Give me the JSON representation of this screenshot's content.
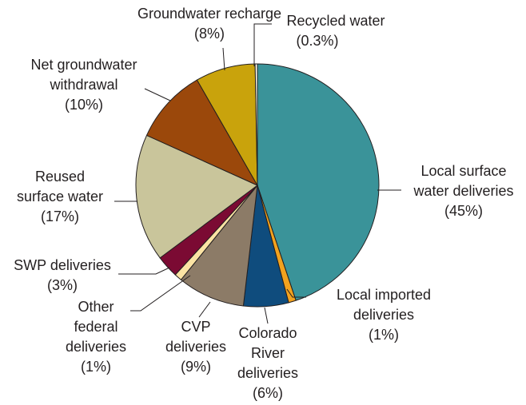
{
  "chart_data": {
    "type": "pie",
    "categories": [
      [
        "Local surface",
        "water deliveries"
      ],
      [
        "Local imported",
        "deliveries"
      ],
      [
        "Colorado",
        "River",
        "deliveries"
      ],
      [
        "CVP",
        "deliveries"
      ],
      [
        "Other",
        "federal",
        "deliveries"
      ],
      [
        "SWP deliveries"
      ],
      [
        "Reused",
        "surface water"
      ],
      [
        "Net groundwater",
        "withdrawal"
      ],
      [
        "Groundwater recharge"
      ],
      [
        "Recycled water"
      ]
    ],
    "values": [
      45,
      1,
      6,
      9,
      1,
      3,
      17,
      10,
      8,
      0.3
    ],
    "value_labels": [
      "(45%)",
      "(1%)",
      "(6%)",
      "(9%)",
      "(1%)",
      "(3%)",
      "(17%)",
      "(10%)",
      "(8%)",
      "(0.3%)"
    ],
    "colors": [
      "#3a9399",
      "#f2a21e",
      "#0f4c7d",
      "#8c7b67",
      "#fbe3a4",
      "#7b0a33",
      "#c9c59b",
      "#9b480b",
      "#c9a30c",
      "#fffef0"
    ]
  }
}
